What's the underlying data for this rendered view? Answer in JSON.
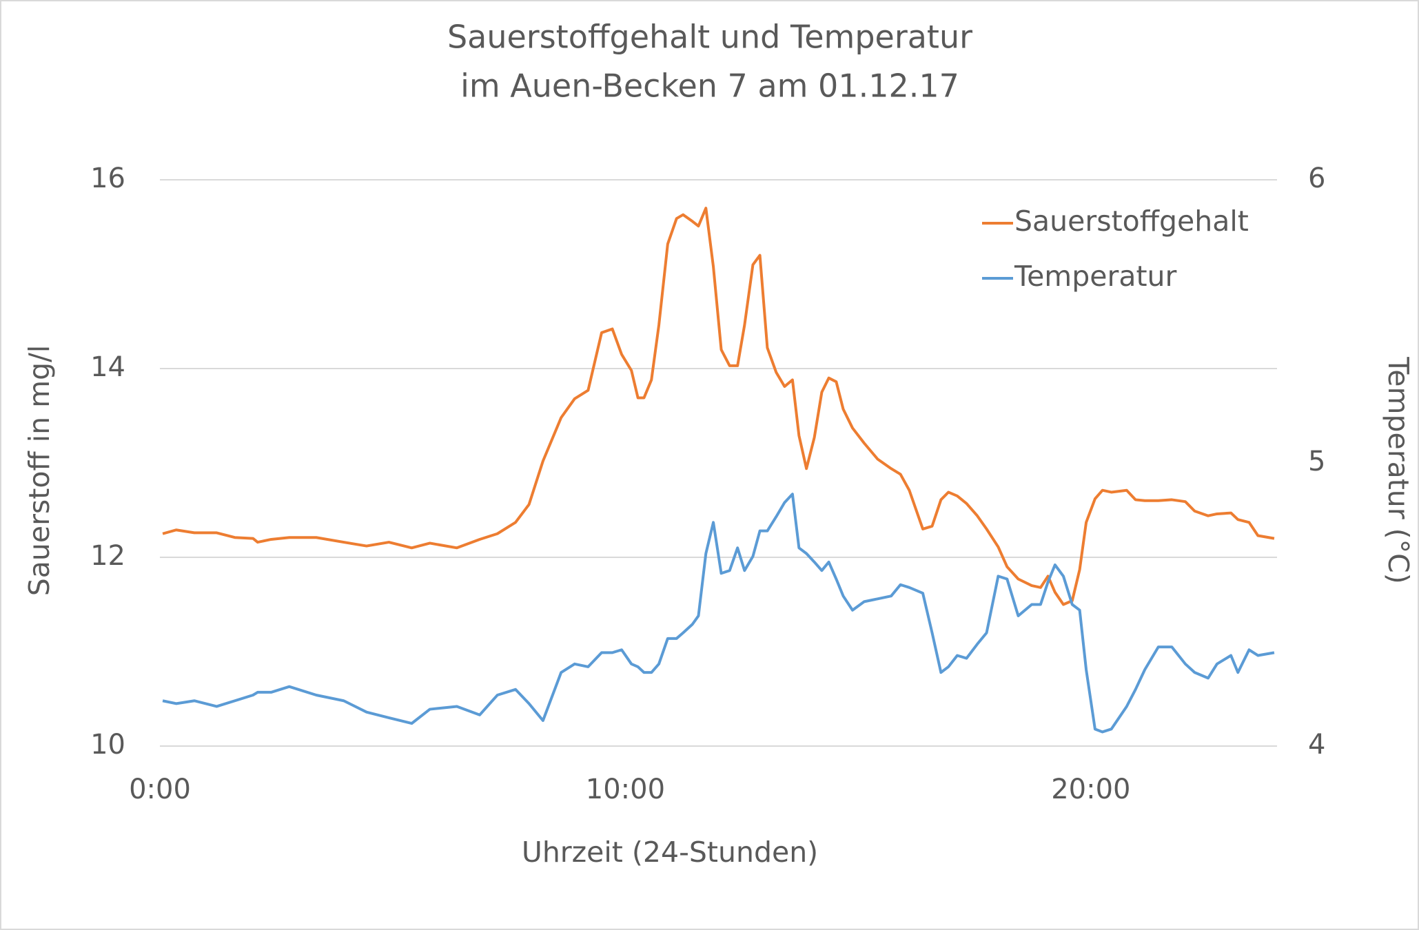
{
  "chart_data": {
    "type": "line",
    "title_lines": [
      "Sauerstoffgehalt und Temperatur",
      "im Auen-Becken 7 am 01.12.17"
    ],
    "x_label": "Uhrzeit (24-Stunden)",
    "y_label": "Sauerstoff in mg/l",
    "y2_label": "Temperatur (°C)",
    "xlim": [
      0,
      24
    ],
    "xticks": [
      {
        "value": 0,
        "label": "0:00"
      },
      {
        "value": 10,
        "label": "10:00"
      },
      {
        "value": 20,
        "label": "20:00"
      }
    ],
    "ylim": [
      10,
      16
    ],
    "yticks": [
      10,
      12,
      14,
      16
    ],
    "y2lim": [
      4,
      6
    ],
    "y2ticks": [
      4,
      5,
      6
    ],
    "grid": true,
    "legend": "top-right",
    "x": [
      0.06,
      0.35,
      0.74,
      1.22,
      1.61,
      2.0,
      2.1,
      2.39,
      2.78,
      3.36,
      3.95,
      4.44,
      4.92,
      5.41,
      5.8,
      6.38,
      6.87,
      7.25,
      7.64,
      7.93,
      8.23,
      8.62,
      8.91,
      9.2,
      9.49,
      9.72,
      9.92,
      10.13,
      10.27,
      10.4,
      10.56,
      10.72,
      10.91,
      11.1,
      11.24,
      11.44,
      11.57,
      11.73,
      11.89,
      12.06,
      12.24,
      12.41,
      12.56,
      12.74,
      12.89,
      13.05,
      13.24,
      13.42,
      13.59,
      13.73,
      13.89,
      14.06,
      14.22,
      14.37,
      14.53,
      14.68,
      14.88,
      15.13,
      15.42,
      15.71,
      15.91,
      16.1,
      16.39,
      16.59,
      16.78,
      16.94,
      17.13,
      17.33,
      17.56,
      17.76,
      18.01,
      18.2,
      18.44,
      18.73,
      18.92,
      19.08,
      19.23,
      19.41,
      19.6,
      19.76,
      19.9,
      20.09,
      20.25,
      20.44,
      20.77,
      20.96,
      21.16,
      21.45,
      21.74,
      22.03,
      22.23,
      22.52,
      22.71,
      23.01,
      23.16,
      23.4,
      23.59,
      23.94
    ],
    "series": [
      {
        "name": "Sauerstoffgehalt",
        "color": "#ed7d31",
        "axis": "y",
        "values": [
          12.25,
          12.29,
          12.26,
          12.26,
          12.21,
          12.2,
          12.16,
          12.19,
          12.21,
          12.21,
          12.16,
          12.12,
          12.16,
          12.1,
          12.15,
          12.1,
          12.19,
          12.25,
          12.37,
          12.56,
          13.02,
          13.48,
          13.68,
          13.77,
          14.38,
          14.42,
          14.15,
          13.98,
          13.69,
          13.69,
          13.88,
          14.46,
          15.32,
          15.59,
          15.63,
          15.56,
          15.51,
          15.7,
          15.08,
          14.2,
          14.03,
          14.03,
          14.46,
          15.1,
          15.2,
          14.22,
          13.96,
          13.81,
          13.88,
          13.29,
          12.94,
          13.27,
          13.75,
          13.9,
          13.86,
          13.57,
          13.37,
          13.21,
          13.04,
          12.94,
          12.88,
          12.71,
          12.3,
          12.33,
          12.61,
          12.69,
          12.65,
          12.57,
          12.44,
          12.3,
          12.11,
          11.9,
          11.77,
          11.7,
          11.68,
          11.8,
          11.63,
          11.5,
          11.54,
          11.87,
          12.37,
          12.62,
          12.71,
          12.69,
          12.71,
          12.61,
          12.6,
          12.6,
          12.61,
          12.59,
          12.49,
          12.44,
          12.46,
          12.47,
          12.4,
          12.37,
          12.23,
          12.2
        ]
      },
      {
        "name": "Temperatur",
        "color": "#5b9bd5",
        "axis": "y2",
        "values": [
          4.16,
          4.15,
          4.16,
          4.14,
          4.16,
          4.18,
          4.19,
          4.19,
          4.21,
          4.18,
          4.16,
          4.12,
          4.1,
          4.08,
          4.13,
          4.14,
          4.11,
          4.18,
          4.2,
          4.15,
          4.09,
          4.26,
          4.29,
          4.28,
          4.33,
          4.33,
          4.34,
          4.29,
          4.28,
          4.26,
          4.26,
          4.29,
          4.38,
          4.38,
          4.4,
          4.43,
          4.46,
          4.68,
          4.79,
          4.61,
          4.62,
          4.7,
          4.62,
          4.67,
          4.76,
          4.76,
          4.81,
          4.86,
          4.89,
          4.7,
          4.68,
          4.65,
          4.62,
          4.65,
          4.59,
          4.53,
          4.48,
          4.51,
          4.52,
          4.53,
          4.57,
          4.56,
          4.54,
          4.4,
          4.26,
          4.28,
          4.32,
          4.31,
          4.36,
          4.4,
          4.6,
          4.59,
          4.46,
          4.5,
          4.5,
          4.58,
          4.64,
          4.6,
          4.5,
          4.48,
          4.27,
          4.06,
          4.05,
          4.06,
          4.14,
          4.2,
          4.27,
          4.35,
          4.35,
          4.29,
          4.26,
          4.24,
          4.29,
          4.32,
          4.26,
          4.34,
          4.32,
          4.33
        ]
      }
    ]
  }
}
